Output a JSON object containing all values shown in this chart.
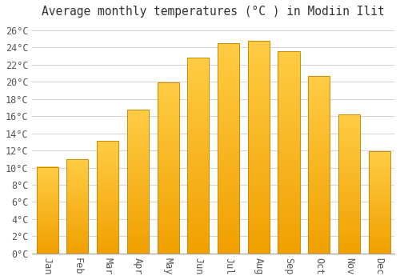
{
  "months": [
    "Jan",
    "Feb",
    "Mar",
    "Apr",
    "May",
    "Jun",
    "Jul",
    "Aug",
    "Sep",
    "Oct",
    "Nov",
    "Dec"
  ],
  "values": [
    10.1,
    11.0,
    13.1,
    16.8,
    19.9,
    22.8,
    24.5,
    24.8,
    23.6,
    20.7,
    16.2,
    11.9
  ],
  "bar_color_top": "#FFCC44",
  "bar_color_bottom": "#F0A000",
  "bar_edge_color": "#CC8800",
  "background_color": "#FFFFFF",
  "plot_bg_color": "#FFFFFF",
  "grid_color": "#CCCCCC",
  "title": "Average monthly temperatures (°C ) in Modiin Ilit",
  "title_fontsize": 10.5,
  "tick_label_fontsize": 8.5,
  "ylim": [
    0,
    27
  ],
  "yticks": [
    0,
    2,
    4,
    6,
    8,
    10,
    12,
    14,
    16,
    18,
    20,
    22,
    24,
    26
  ],
  "font_family": "monospace",
  "tick_color": "#555555"
}
